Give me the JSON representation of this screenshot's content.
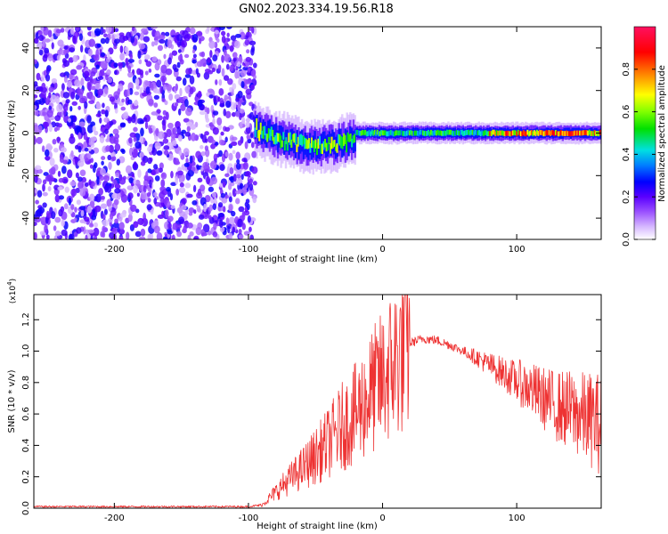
{
  "title": "GN02.2023.334.19.56.R18",
  "chart_data": [
    {
      "type": "heatmap",
      "xlabel": "Height of straight line (km)",
      "ylabel": "Frequency (Hz)",
      "xlim": [
        -260,
        163
      ],
      "ylim": [
        -50,
        50
      ],
      "xticks": [
        -200,
        -100,
        0,
        100
      ],
      "yticks": [
        -40,
        -20,
        0,
        20,
        40
      ],
      "colorbar": {
        "label": "Normalized spectral amplitude",
        "range": [
          0.0,
          1.0
        ],
        "ticks": [
          "0.0",
          "0.2",
          "0.4",
          "0.6",
          "0.8"
        ],
        "colormap": [
          "#ffffff",
          "#e0c8ff",
          "#9a50ff",
          "#5a00ff",
          "#0000ff",
          "#0080ff",
          "#00e0e0",
          "#00e000",
          "#80ff00",
          "#ffff00",
          "#ff8000",
          "#ff0000",
          "#ff1060"
        ]
      },
      "regions": [
        {
          "x": [
            -260,
            -95
          ],
          "description": "broadband noise, amplitude 0.1-0.3"
        },
        {
          "x": [
            -95,
            -20
          ],
          "center_hz": [
            2,
            -6
          ],
          "peak_amplitude": 0.7
        },
        {
          "x": [
            -20,
            80
          ],
          "center_hz": 0,
          "peak_amplitude": 0.6
        },
        {
          "x": [
            80,
            163
          ],
          "center_hz": 0,
          "peak_amplitude": 0.95
        }
      ]
    },
    {
      "type": "line",
      "xlabel": "Height of straight line (km)",
      "ylabel": "SNR (10 * v/v)",
      "y_multiplier": "(x10",
      "y_multiplier_exp": "4",
      "xlim": [
        -260,
        163
      ],
      "ylim": [
        0,
        1.36
      ],
      "xticks": [
        -200,
        -100,
        0,
        100
      ],
      "yticks": [
        "0.0",
        "0.2",
        "0.4",
        "0.6",
        "0.8",
        "1.0",
        "1.2"
      ],
      "color": "#ee3333",
      "series": [
        {
          "x": [
            -260,
            -200,
            -150,
            -100,
            -90,
            -80,
            -70,
            -60,
            -50,
            -40,
            -30,
            -20,
            -10,
            0,
            10,
            20,
            30,
            40,
            50,
            60,
            70,
            80,
            90,
            100,
            110,
            120,
            130,
            140,
            150,
            160,
            163
          ],
          "y": [
            0.01,
            0.01,
            0.01,
            0.01,
            0.02,
            0.1,
            0.18,
            0.25,
            0.33,
            0.42,
            0.52,
            0.6,
            0.72,
            0.82,
            0.95,
            1.05,
            1.08,
            1.07,
            1.04,
            1.0,
            0.96,
            0.91,
            0.86,
            0.81,
            0.76,
            0.7,
            0.65,
            0.62,
            0.58,
            0.55,
            0.53
          ]
        }
      ]
    }
  ]
}
